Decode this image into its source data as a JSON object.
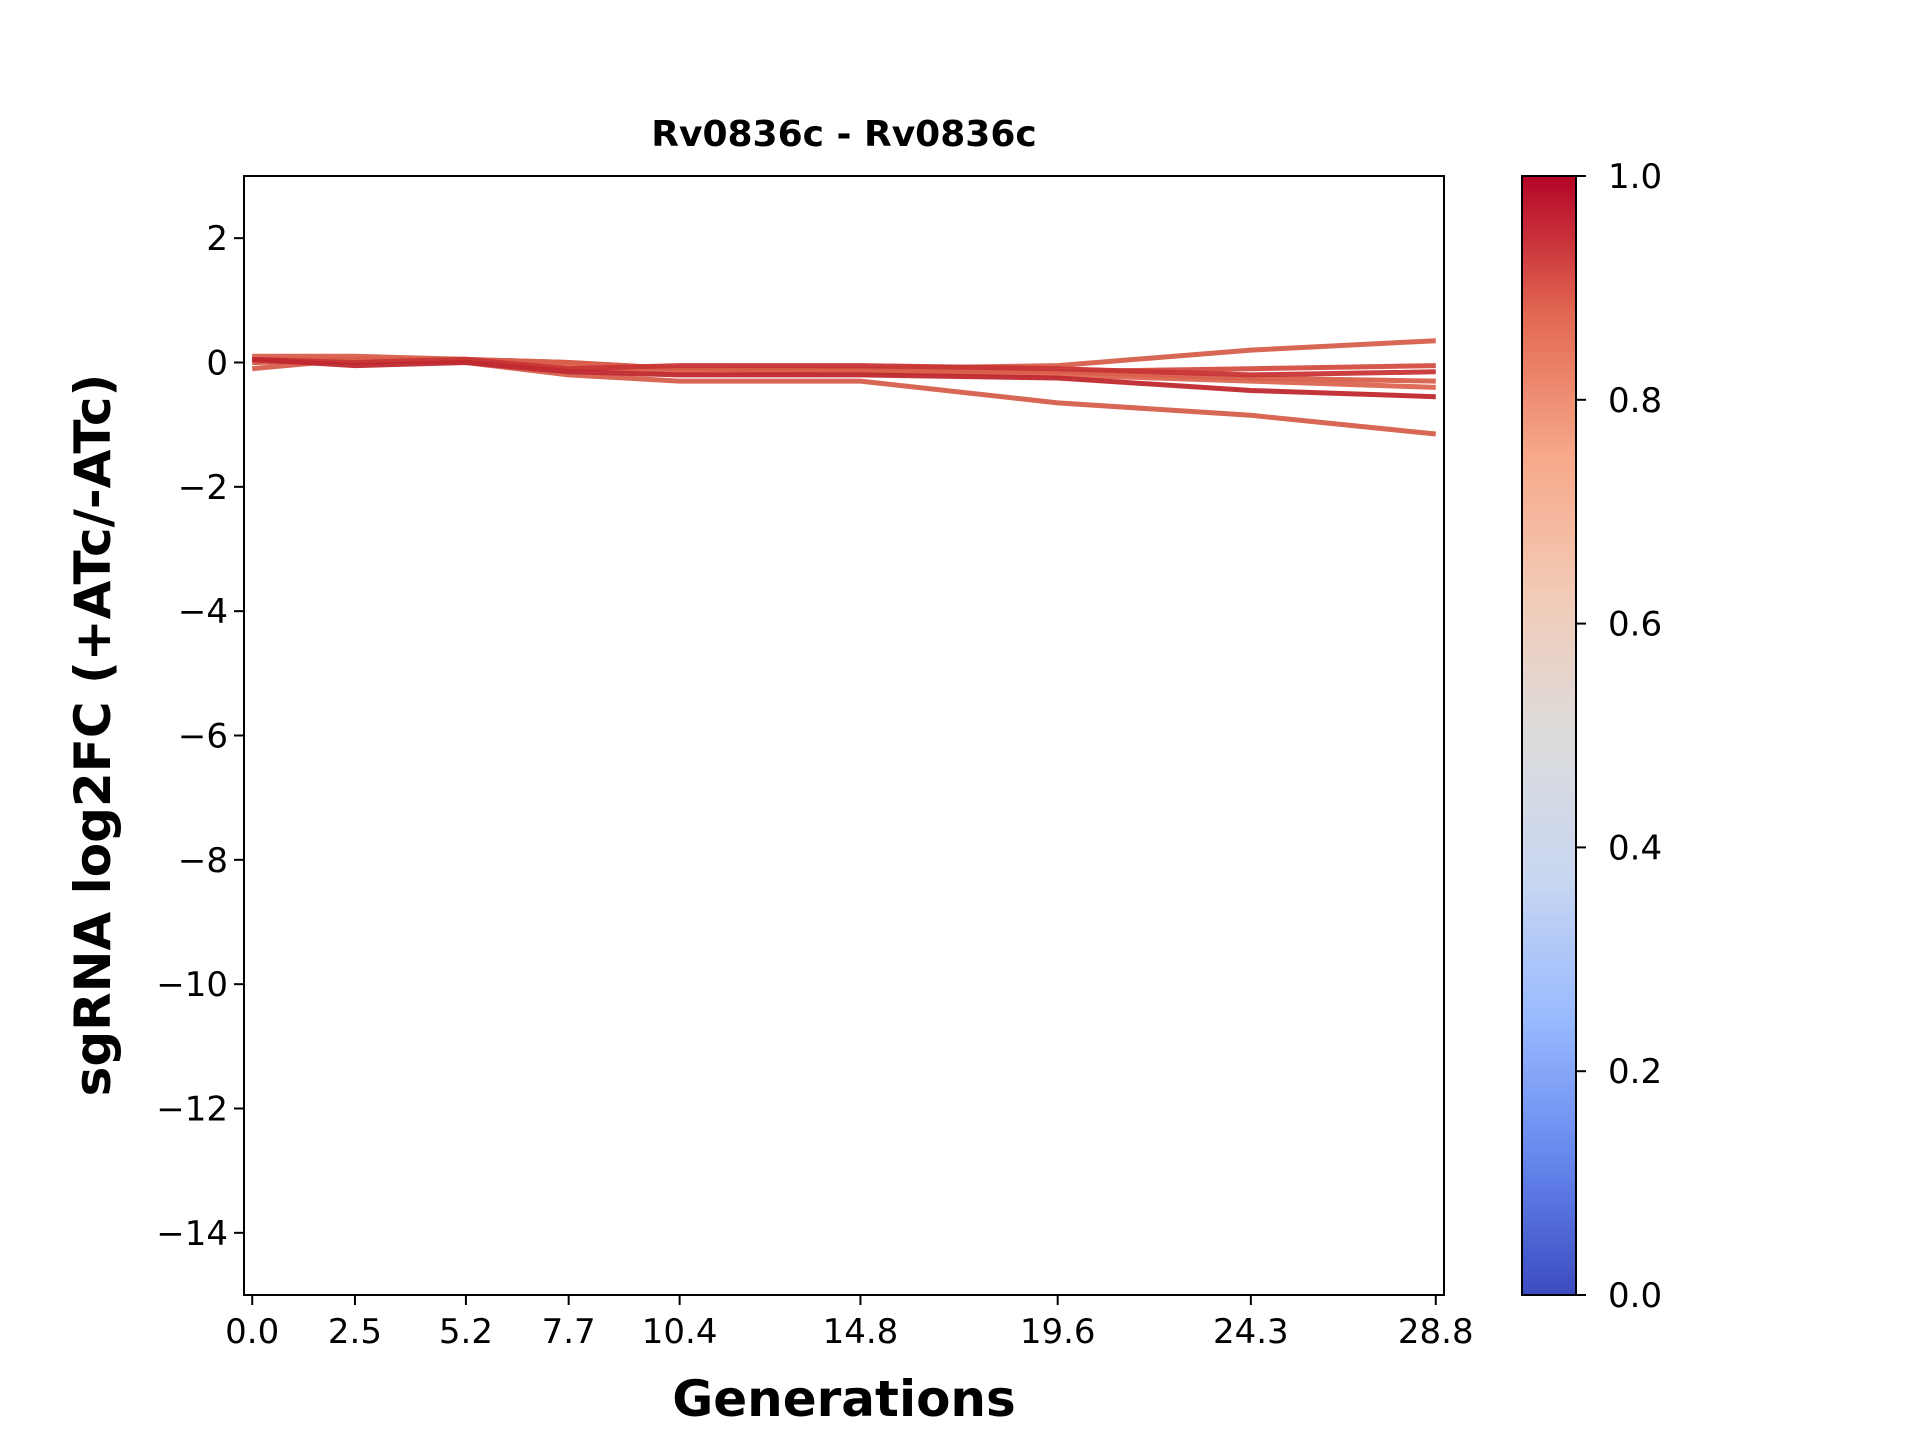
{
  "chart_data": {
    "type": "line",
    "title": "Rv0836c - Rv0836c",
    "xlabel": "Generations",
    "ylabel": "sgRNA log2FC (+ATc/-ATc)",
    "x": [
      0.0,
      2.5,
      5.2,
      7.7,
      10.4,
      14.8,
      19.6,
      24.3,
      28.8
    ],
    "xtick_labels": [
      "0.0",
      "2.5",
      "5.2",
      "7.7",
      "10.4",
      "14.8",
      "19.6",
      "24.3",
      "28.8"
    ],
    "xlim": [
      -0.2,
      29.0
    ],
    "ylim": [
      -15,
      3
    ],
    "yticks": [
      2,
      0,
      -2,
      -4,
      -6,
      -8,
      -10,
      -12,
      -14
    ],
    "ytick_labels": [
      "2",
      "0",
      "−2",
      "−4",
      "−6",
      "−8",
      "−10",
      "−12",
      "−14"
    ],
    "grid": false,
    "colormap": "coolwarm",
    "series": [
      {
        "values": [
          0.05,
          0.0,
          0.05,
          -0.1,
          -0.1,
          -0.1,
          -0.05,
          0.2,
          0.35
        ],
        "color": "#d75f4c"
      },
      {
        "values": [
          -0.1,
          0.05,
          0.0,
          -0.2,
          -0.3,
          -0.3,
          -0.65,
          -0.85,
          -1.15
        ],
        "color": "#d75f4c"
      },
      {
        "values": [
          0.0,
          0.05,
          0.05,
          0.0,
          -0.1,
          -0.1,
          -0.15,
          -0.1,
          -0.05
        ],
        "color": "#d44e41"
      },
      {
        "values": [
          0.05,
          0.05,
          0.05,
          -0.05,
          -0.15,
          -0.15,
          -0.2,
          -0.3,
          -0.4
        ],
        "color": "#dc6650"
      },
      {
        "values": [
          0.1,
          0.1,
          0.05,
          0.0,
          -0.1,
          -0.15,
          -0.15,
          -0.25,
          -0.3
        ],
        "color": "#d95f4c"
      },
      {
        "values": [
          0.05,
          0.0,
          0.05,
          -0.1,
          -0.05,
          -0.05,
          -0.1,
          -0.2,
          -0.15
        ],
        "color": "#c83536"
      },
      {
        "values": [
          0.05,
          -0.05,
          0.0,
          -0.15,
          -0.2,
          -0.2,
          -0.25,
          -0.45,
          -0.55
        ],
        "color": "#c0282f"
      }
    ],
    "colorbar": {
      "range": [
        0.0,
        1.0
      ],
      "ticks": [
        "0.0",
        "0.2",
        "0.4",
        "0.6",
        "0.8",
        "1.0"
      ],
      "stops": [
        "#3b4cc0",
        "#6788ee",
        "#9abbff",
        "#c9d7f0",
        "#dddcdc",
        "#f2cbb7",
        "#f7a889",
        "#e26952",
        "#b40426"
      ]
    }
  }
}
